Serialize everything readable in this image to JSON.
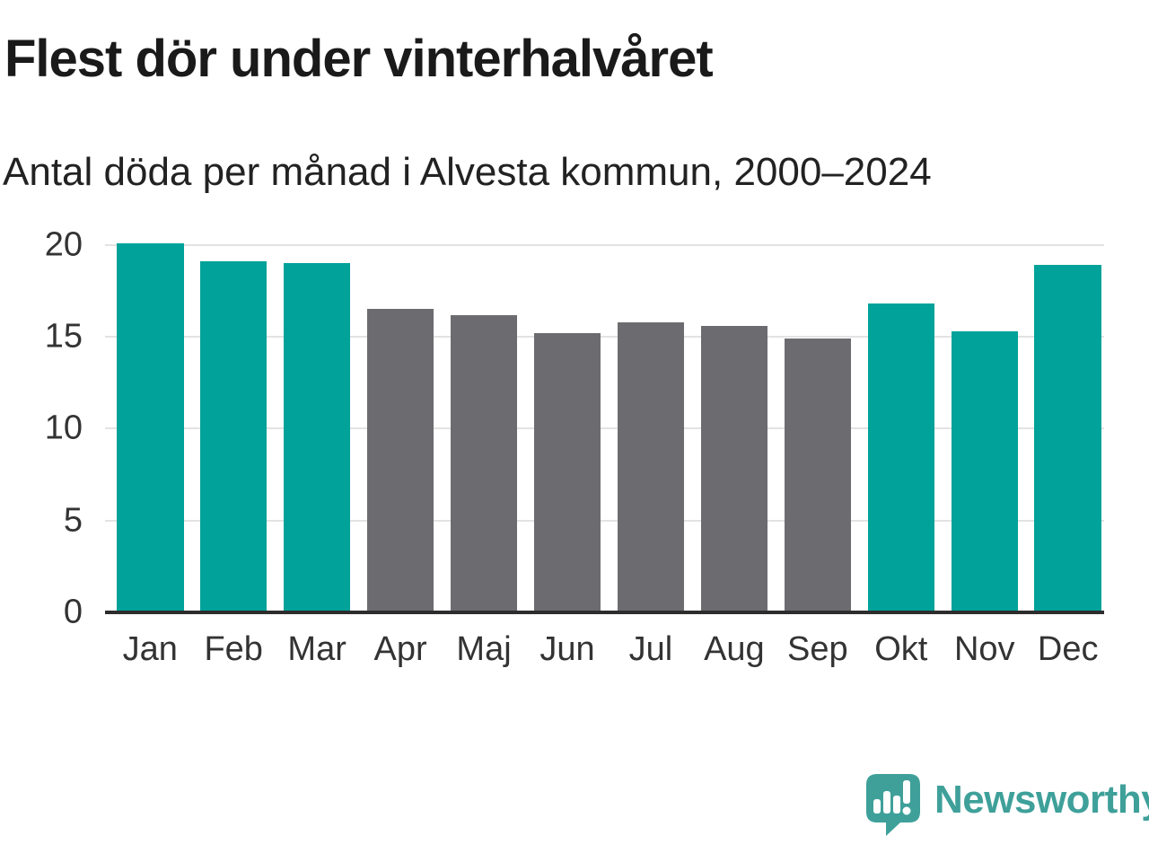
{
  "chart_data": {
    "type": "bar",
    "title": "Flest dör under vinterhalvåret",
    "subtitle": "Antal döda per månad i Alvesta kommun, 2000–2024",
    "categories": [
      "Jan",
      "Feb",
      "Mar",
      "Apr",
      "Maj",
      "Jun",
      "Jul",
      "Aug",
      "Sep",
      "Okt",
      "Nov",
      "Dec"
    ],
    "values": [
      20.1,
      19.1,
      19.0,
      16.5,
      16.2,
      15.2,
      15.8,
      15.6,
      14.9,
      16.8,
      15.3,
      18.9
    ],
    "highlight_categories": [
      "Jan",
      "Feb",
      "Mar",
      "Okt",
      "Nov",
      "Dec"
    ],
    "colors": {
      "winter_bar": "#00a29a",
      "summer_bar": "#6c6c70",
      "gridline": "#e3e3e3",
      "axis": "#2d2d2d",
      "tick_text": "#333333"
    },
    "xlabel": "",
    "ylabel": "",
    "ylim": [
      0,
      20
    ],
    "yticks": [
      0,
      5,
      10,
      15,
      20
    ],
    "grid": true,
    "legend_position": "none"
  },
  "footer": {
    "brand": "Newsworthy",
    "brand_color": "#3fa09a"
  }
}
